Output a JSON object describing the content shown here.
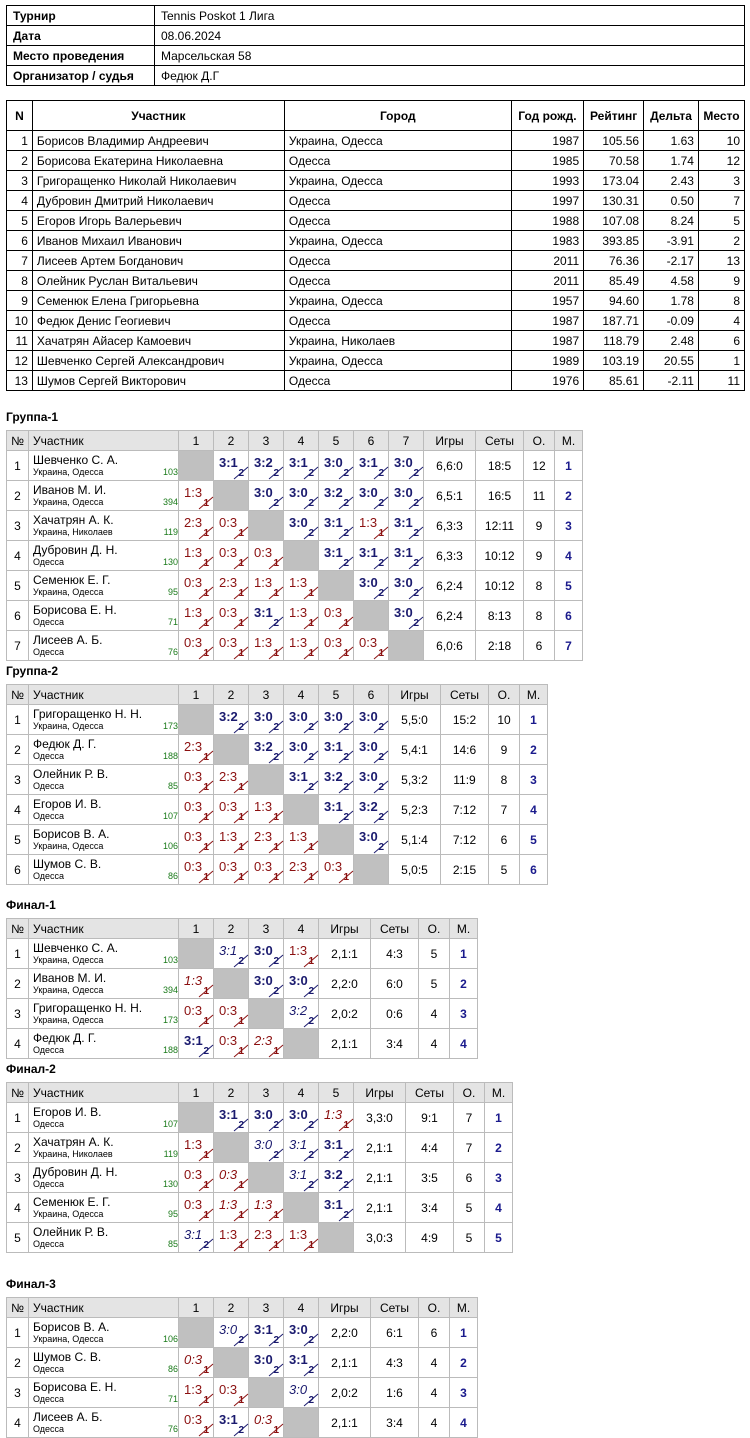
{
  "info": [
    {
      "label": "Турнир",
      "value": "Tennis Poskot 1 Лига"
    },
    {
      "label": "Дата",
      "value": "08.06.2024"
    },
    {
      "label": "Место проведения",
      "value": "Марсельская 58"
    },
    {
      "label": "Организатор / судья",
      "value": "Федюк Д.Г"
    }
  ],
  "participants": {
    "headers": [
      "N",
      "Участник",
      "Город",
      "Год рожд.",
      "Рейтинг",
      "Дельта",
      "Место"
    ],
    "rows": [
      [
        "1",
        "Борисов Владимир Андреевич",
        "Украина, Одесса",
        "1987",
        "105.56",
        "1.63",
        "10"
      ],
      [
        "2",
        "Борисова Екатерина Николаевна",
        "Одесса",
        "1985",
        "70.58",
        "1.74",
        "12"
      ],
      [
        "3",
        "Григоращенко Николай Николаевич",
        "Украина, Одесса",
        "1993",
        "173.04",
        "2.43",
        "3"
      ],
      [
        "4",
        "Дубровин Дмитрий Николаевич",
        "Одесса",
        "1997",
        "130.31",
        "0.50",
        "7"
      ],
      [
        "5",
        "Егоров Игорь Валерьевич",
        "Одесса",
        "1988",
        "107.08",
        "8.24",
        "5"
      ],
      [
        "6",
        "Иванов Михаил Иванович",
        "Украина, Одесса",
        "1983",
        "393.85",
        "-3.91",
        "2"
      ],
      [
        "7",
        "Лисеев Артем Богданович",
        "Одесса",
        "2011",
        "76.36",
        "-2.17",
        "13"
      ],
      [
        "8",
        "Олейник Руслан Витальевич",
        "Одесса",
        "2011",
        "85.49",
        "4.58",
        "9"
      ],
      [
        "9",
        "Семенюк Елена Григорьевна",
        "Украина, Одесса",
        "1957",
        "94.60",
        "1.78",
        "8"
      ],
      [
        "10",
        "Федюк Денис Геогиевич",
        "Одесса",
        "1987",
        "187.71",
        "-0.09",
        "4"
      ],
      [
        "11",
        "Хачатрян Айасер Камоевич",
        "Украина, Николаев",
        "1987",
        "118.79",
        "2.48",
        "6"
      ],
      [
        "12",
        "Шевченко Сергей Александрович",
        "Украина, Одесса",
        "1989",
        "103.19",
        "20.55",
        "1"
      ],
      [
        "13",
        "Шумов Сергей Викторович",
        "Одесса",
        "1976",
        "85.61",
        "-2.11",
        "11"
      ]
    ]
  },
  "groups": [
    {
      "title": "Группа-1",
      "headers": {
        "num": "№",
        "name": "Участник",
        "games": "Игры",
        "sets": "Сеты",
        "points": "О.",
        "place": "М."
      },
      "players": [
        {
          "n": "1",
          "name": "Шевченко С. А.",
          "city": "Украина, Одесса",
          "rating": "103",
          "games": "6,6:0",
          "sets": "18:5",
          "points": "12",
          "place": "1",
          "cells": [
            "X",
            "3:1|2|w",
            "3:2|2|w",
            "3:1|2|w",
            "3:0|2|w",
            "3:1|2|w",
            "3:0|2|w"
          ]
        },
        {
          "n": "2",
          "name": "Иванов М. И.",
          "city": "Украина, Одесса",
          "rating": "394",
          "games": "6,5:1",
          "sets": "16:5",
          "points": "11",
          "place": "2",
          "cells": [
            "1:3|1|l",
            "X",
            "3:0|2|w",
            "3:0|2|w",
            "3:2|2|w",
            "3:0|2|w",
            "3:0|2|w"
          ]
        },
        {
          "n": "3",
          "name": "Хачатрян А. К.",
          "city": "Украина, Николаев",
          "rating": "119",
          "games": "6,3:3",
          "sets": "12:11",
          "points": "9",
          "place": "3",
          "cells": [
            "2:3|1|l",
            "0:3|1|l",
            "X",
            "3:0|2|w",
            "3:1|2|w",
            "1:3|1|l",
            "3:1|2|w"
          ]
        },
        {
          "n": "4",
          "name": "Дубровин Д. Н.",
          "city": "Одесса",
          "rating": "130",
          "games": "6,3:3",
          "sets": "10:12",
          "points": "9",
          "place": "4",
          "cells": [
            "1:3|1|l",
            "0:3|1|l",
            "0:3|1|l",
            "X",
            "3:1|2|w",
            "3:1|2|w",
            "3:1|2|w"
          ]
        },
        {
          "n": "5",
          "name": "Семенюк Е. Г.",
          "city": "Украина, Одесса",
          "rating": "95",
          "games": "6,2:4",
          "sets": "10:12",
          "points": "8",
          "place": "5",
          "cells": [
            "0:3|1|l",
            "2:3|1|l",
            "1:3|1|l",
            "1:3|1|l",
            "X",
            "3:0|2|w",
            "3:0|2|w"
          ]
        },
        {
          "n": "6",
          "name": "Борисова Е. Н.",
          "city": "Одесса",
          "rating": "71",
          "games": "6,2:4",
          "sets": "8:13",
          "points": "8",
          "place": "6",
          "cells": [
            "1:3|1|l",
            "0:3|1|l",
            "3:1|2|w",
            "1:3|1|l",
            "0:3|1|l",
            "X",
            "3:0|2|w"
          ]
        },
        {
          "n": "7",
          "name": "Лисеев А. Б.",
          "city": "Одесса",
          "rating": "76",
          "games": "6,0:6",
          "sets": "2:18",
          "points": "6",
          "place": "7",
          "cells": [
            "0:3|1|l",
            "0:3|1|l",
            "1:3|1|l",
            "1:3|1|l",
            "0:3|1|l",
            "0:3|1|l",
            "X"
          ]
        }
      ]
    },
    {
      "title": "Группа-2",
      "headers": {
        "num": "№",
        "name": "Участник",
        "games": "Игры",
        "sets": "Сеты",
        "points": "О.",
        "place": "М."
      },
      "players": [
        {
          "n": "1",
          "name": "Григоращенко Н. Н.",
          "city": "Украина, Одесса",
          "rating": "173",
          "games": "5,5:0",
          "sets": "15:2",
          "points": "10",
          "place": "1",
          "cells": [
            "X",
            "3:2|2|w",
            "3:0|2|w",
            "3:0|2|w",
            "3:0|2|w",
            "3:0|2|w"
          ]
        },
        {
          "n": "2",
          "name": "Федюк Д. Г.",
          "city": "Одесса",
          "rating": "188",
          "games": "5,4:1",
          "sets": "14:6",
          "points": "9",
          "place": "2",
          "cells": [
            "2:3|1|l",
            "X",
            "3:2|2|w",
            "3:0|2|w",
            "3:1|2|w",
            "3:0|2|w"
          ]
        },
        {
          "n": "3",
          "name": "Олейник Р. В.",
          "city": "Одесса",
          "rating": "85",
          "games": "5,3:2",
          "sets": "11:9",
          "points": "8",
          "place": "3",
          "cells": [
            "0:3|1|l",
            "2:3|1|l",
            "X",
            "3:1|2|w",
            "3:2|2|w",
            "3:0|2|w"
          ]
        },
        {
          "n": "4",
          "name": "Егоров И. В.",
          "city": "Одесса",
          "rating": "107",
          "games": "5,2:3",
          "sets": "7:12",
          "points": "7",
          "place": "4",
          "cells": [
            "0:3|1|l",
            "0:3|1|l",
            "1:3|1|l",
            "X",
            "3:1|2|w",
            "3:2|2|w"
          ]
        },
        {
          "n": "5",
          "name": "Борисов В. А.",
          "city": "Украина, Одесса",
          "rating": "106",
          "games": "5,1:4",
          "sets": "7:12",
          "points": "6",
          "place": "5",
          "cells": [
            "0:3|1|l",
            "1:3|1|l",
            "2:3|1|l",
            "1:3|1|l",
            "X",
            "3:0|2|w"
          ]
        },
        {
          "n": "6",
          "name": "Шумов С. В.",
          "city": "Одесса",
          "rating": "86",
          "games": "5,0:5",
          "sets": "2:15",
          "points": "5",
          "place": "6",
          "cells": [
            "0:3|1|l",
            "0:3|1|l",
            "0:3|1|l",
            "2:3|1|l",
            "0:3|1|l",
            "X"
          ]
        }
      ]
    },
    {
      "title": "Финал-1",
      "headers": {
        "num": "№",
        "name": "Участник",
        "games": "Игры",
        "sets": "Сеты",
        "points": "О.",
        "place": "М."
      },
      "players": [
        {
          "n": "1",
          "name": "Шевченко С. А.",
          "city": "Украина, Одесса",
          "rating": "103",
          "games": "2,1:1",
          "sets": "4:3",
          "points": "5",
          "place": "1",
          "cells": [
            "X",
            "3:1|2|wi",
            "3:0|2|w",
            "1:3|1|l"
          ]
        },
        {
          "n": "2",
          "name": "Иванов М. И.",
          "city": "Украина, Одесса",
          "rating": "394",
          "games": "2,2:0",
          "sets": "6:0",
          "points": "5",
          "place": "2",
          "cells": [
            "1:3|1|li",
            "X",
            "3:0|2|w",
            "3:0|2|w"
          ]
        },
        {
          "n": "3",
          "name": "Григоращенко Н. Н.",
          "city": "Украина, Одесса",
          "rating": "173",
          "games": "2,0:2",
          "sets": "0:6",
          "points": "4",
          "place": "3",
          "cells": [
            "0:3|1|l",
            "0:3|1|l",
            "X",
            "3:2|2|wi"
          ]
        },
        {
          "n": "4",
          "name": "Федюк Д. Г.",
          "city": "Одесса",
          "rating": "188",
          "games": "2,1:1",
          "sets": "3:4",
          "points": "4",
          "place": "4",
          "cells": [
            "3:1|2|w",
            "0:3|1|l",
            "2:3|1|li",
            "X"
          ]
        }
      ]
    },
    {
      "title": "Финал-2",
      "headers": {
        "num": "№",
        "name": "Участник",
        "games": "Игры",
        "sets": "Сеты",
        "points": "О.",
        "place": "М."
      },
      "players": [
        {
          "n": "1",
          "name": "Егоров И. В.",
          "city": "Одесса",
          "rating": "107",
          "games": "3,3:0",
          "sets": "9:1",
          "points": "7",
          "place": "1",
          "cells": [
            "X",
            "3:1|2|w",
            "3:0|2|w",
            "3:0|2|w",
            "1:3|1|li"
          ]
        },
        {
          "n": "2",
          "name": "Хачатрян А. К.",
          "city": "Украина, Николаев",
          "rating": "119",
          "games": "2,1:1",
          "sets": "4:4",
          "points": "7",
          "place": "2",
          "cells": [
            "1:3|1|l",
            "X",
            "3:0|2|wi",
            "3:1|2|wi",
            "3:1|2|w"
          ]
        },
        {
          "n": "3",
          "name": "Дубровин Д. Н.",
          "city": "Одесса",
          "rating": "130",
          "games": "2,1:1",
          "sets": "3:5",
          "points": "6",
          "place": "3",
          "cells": [
            "0:3|1|l",
            "0:3|1|li",
            "X",
            "3:1|2|wi",
            "3:2|2|w"
          ]
        },
        {
          "n": "4",
          "name": "Семенюк Е. Г.",
          "city": "Украина, Одесса",
          "rating": "95",
          "games": "2,1:1",
          "sets": "3:4",
          "points": "5",
          "place": "4",
          "cells": [
            "0:3|1|l",
            "1:3|1|li",
            "1:3|1|li",
            "X",
            "3:1|2|w"
          ]
        },
        {
          "n": "5",
          "name": "Олейник Р. В.",
          "city": "Одесса",
          "rating": "85",
          "games": "3,0:3",
          "sets": "4:9",
          "points": "5",
          "place": "5",
          "cells": [
            "3:1|2|wi",
            "1:3|1|l",
            "2:3|1|l",
            "1:3|1|l",
            "X"
          ]
        }
      ]
    },
    {
      "title": "Финал-3",
      "headers": {
        "num": "№",
        "name": "Участник",
        "games": "Игры",
        "sets": "Сеты",
        "points": "О.",
        "place": "М."
      },
      "players": [
        {
          "n": "1",
          "name": "Борисов В. А.",
          "city": "Украина, Одесса",
          "rating": "106",
          "games": "2,2:0",
          "sets": "6:1",
          "points": "6",
          "place": "1",
          "cells": [
            "X",
            "3:0|2|wi",
            "3:1|2|w",
            "3:0|2|w"
          ]
        },
        {
          "n": "2",
          "name": "Шумов С. В.",
          "city": "Одесса",
          "rating": "86",
          "games": "2,1:1",
          "sets": "4:3",
          "points": "4",
          "place": "2",
          "cells": [
            "0:3|1|li",
            "X",
            "3:0|2|w",
            "3:1|2|w"
          ]
        },
        {
          "n": "3",
          "name": "Борисова Е. Н.",
          "city": "Одесса",
          "rating": "71",
          "games": "2,0:2",
          "sets": "1:6",
          "points": "4",
          "place": "3",
          "cells": [
            "1:3|1|l",
            "0:3|1|l",
            "X",
            "3:0|2|wi"
          ]
        },
        {
          "n": "4",
          "name": "Лисеев А. Б.",
          "city": "Одесса",
          "rating": "76",
          "games": "2,1:1",
          "sets": "3:4",
          "points": "4",
          "place": "4",
          "cells": [
            "0:3|1|l",
            "3:1|2|w",
            "0:3|1|li",
            "X"
          ]
        }
      ]
    }
  ]
}
